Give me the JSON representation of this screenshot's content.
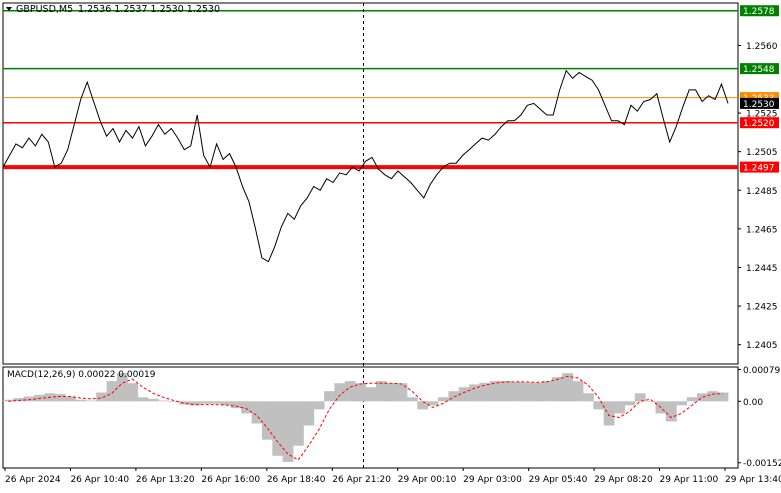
{
  "header": {
    "symbol": "GBPUSD,M5",
    "ohlc": "1.2536 1.2537 1.2530 1.2530"
  },
  "colors": {
    "background": "#ffffff",
    "price_line": "#000000",
    "support_resistance_red": "#ff0000",
    "target_green": "#008000",
    "current_price_orange": "#ff8c00",
    "macd_histogram": "#c0c0c0",
    "macd_signal": "#ff0000",
    "crosshair": "#000000"
  },
  "chart_data": [
    {
      "type": "line",
      "title": "GBPUSD,M5",
      "ylim": [
        1.2395,
        1.2582
      ],
      "y_ticks": [
        "1.2560",
        "1.2525",
        "1.2505",
        "1.2485",
        "1.2465",
        "1.2445",
        "1.2425",
        "1.2405"
      ],
      "x_ticks": [
        "26 Apr 2024",
        "26 Apr 10:40",
        "26 Apr 13:20",
        "26 Apr 16:00",
        "26 Apr 18:40",
        "26 Apr 21:20",
        "29 Apr 00:10",
        "29 Apr 03:00",
        "29 Apr 05:40",
        "29 Apr 08:20",
        "29 Apr 11:00",
        "29 Apr 13:40"
      ],
      "horizontal_levels": [
        {
          "label": "1.2578",
          "value": 1.2578,
          "color": "#008000"
        },
        {
          "label": "1.2548",
          "value": 1.2548,
          "color": "#008000"
        },
        {
          "label": "1.2533",
          "value": 1.2533,
          "color": "#ff8c00"
        },
        {
          "label": "1.2530",
          "value": 1.253,
          "color": "#000000"
        },
        {
          "label": "1.2520",
          "value": 1.252,
          "color": "#ff0000"
        },
        {
          "label": "1.2497",
          "value": 1.2497,
          "color": "#ff0000"
        }
      ],
      "crosshair_index": 0.5,
      "series": [
        {
          "values": [
            1.2497,
            1.2503,
            1.2509,
            1.2507,
            1.2512,
            1.2508,
            1.2514,
            1.251,
            1.2497,
            1.2499,
            1.2506,
            1.2519,
            1.2532,
            1.2541,
            1.2531,
            1.2521,
            1.2513,
            1.2517,
            1.251,
            1.2516,
            1.2512,
            1.2518,
            1.2508,
            1.2513,
            1.2519,
            1.2514,
            1.2517,
            1.2512,
            1.2506,
            1.2508,
            1.2524,
            1.2503,
            1.2497,
            1.2509,
            1.2501,
            1.2504,
            1.2497,
            1.2487,
            1.2479,
            1.2465,
            1.245,
            1.2448,
            1.2456,
            1.2466,
            1.2473,
            1.247,
            1.2477,
            1.2481,
            1.2487,
            1.2485,
            1.2491,
            1.2489,
            1.2494,
            1.2493,
            1.2497,
            1.2495,
            1.25,
            1.2502,
            1.2496,
            1.2493,
            1.2491,
            1.2495,
            1.2492,
            1.2489,
            1.2485,
            1.2481,
            1.2488,
            1.2493,
            1.2497,
            1.2499,
            1.2499,
            1.2503,
            1.2506,
            1.2509,
            1.2512,
            1.2511,
            1.2514,
            1.2518,
            1.2521,
            1.2521,
            1.2524,
            1.2529,
            1.253,
            1.2527,
            1.2524,
            1.2524,
            1.2537,
            1.2547,
            1.2543,
            1.2546,
            1.2544,
            1.2542,
            1.2537,
            1.2529,
            1.2521,
            1.2521,
            1.2519,
            1.2529,
            1.2526,
            1.2531,
            1.2532,
            1.2535,
            1.2522,
            1.251,
            1.2518,
            1.2528,
            1.2537,
            1.2537,
            1.2531,
            1.2534,
            1.2532,
            1.254,
            1.253
          ]
        }
      ]
    },
    {
      "type": "area",
      "title": "MACD(12,26,9) 0.00022 0.00019",
      "ylim": [
        -0.00165,
        0.00085
      ],
      "y_ticks": [
        "0.00079",
        "0.00",
        "-0.00152"
      ],
      "series": [
        {
          "name": "MACD",
          "values": [
            4e-05,
            8e-05,
            0.00012,
            0.00016,
            0.0002,
            0.00018,
            0.00012,
            4e-05,
            2e-05,
            0.00022,
            0.0005,
            0.0007,
            0.00045,
            0.0001,
            6e-05,
            2e-05,
            -2e-05,
            -8e-05,
            -0.0001,
            -6e-05,
            -6e-05,
            -0.0001,
            -0.00017,
            -0.0003,
            -0.00055,
            -0.00095,
            -0.00135,
            -0.0015,
            -0.0011,
            -0.0006,
            -0.0002,
            0.00025,
            0.00045,
            0.0005,
            0.00045,
            0.00035,
            0.0005,
            0.00045,
            0.00045,
            0.0001,
            -0.0002,
            -0.0001,
            0.0001,
            0.00025,
            0.00035,
            0.00042,
            0.00046,
            0.0005,
            0.0005,
            0.00048,
            0.00047,
            0.00046,
            0.0005,
            0.0006,
            0.0007,
            0.0005,
            0.0002,
            -0.0002,
            -0.0006,
            -0.0003,
            -0.0001,
            0.0002,
            0.0,
            -0.0003,
            -0.0005,
            -0.0001,
            0.0001,
            0.0002,
            0.00025,
            0.00022
          ]
        },
        {
          "name": "Signal",
          "values": [
            0.0,
            2e-05,
            4e-05,
            7e-05,
            0.0001,
            0.00012,
            0.00012,
            8e-05,
            6e-05,
            8e-05,
            0.0002,
            0.00045,
            0.00055,
            0.00035,
            0.0002,
            0.0001,
            2e-05,
            -5e-05,
            -8e-05,
            -8e-05,
            -8e-05,
            -9e-05,
            -0.00012,
            -0.00018,
            -0.00035,
            -0.00065,
            -0.001,
            -0.0013,
            -0.00145,
            -0.0011,
            -0.0007,
            -0.0002,
            0.00015,
            0.00035,
            0.00043,
            0.00045,
            0.00045,
            0.00045,
            0.00043,
            0.00025,
            0.0,
            -0.00015,
            -5e-05,
            0.0001,
            0.00022,
            0.00032,
            0.0004,
            0.00045,
            0.00048,
            0.00048,
            0.00048,
            0.00047,
            0.00048,
            0.00054,
            0.00062,
            0.00058,
            0.0004,
            0.0001,
            -0.00035,
            -0.0004,
            -0.00025,
            0.0,
            5e-05,
            -0.00015,
            -0.0004,
            -0.0003,
            -0.0001,
            0.0001,
            0.00018,
            0.00019
          ]
        }
      ]
    }
  ]
}
